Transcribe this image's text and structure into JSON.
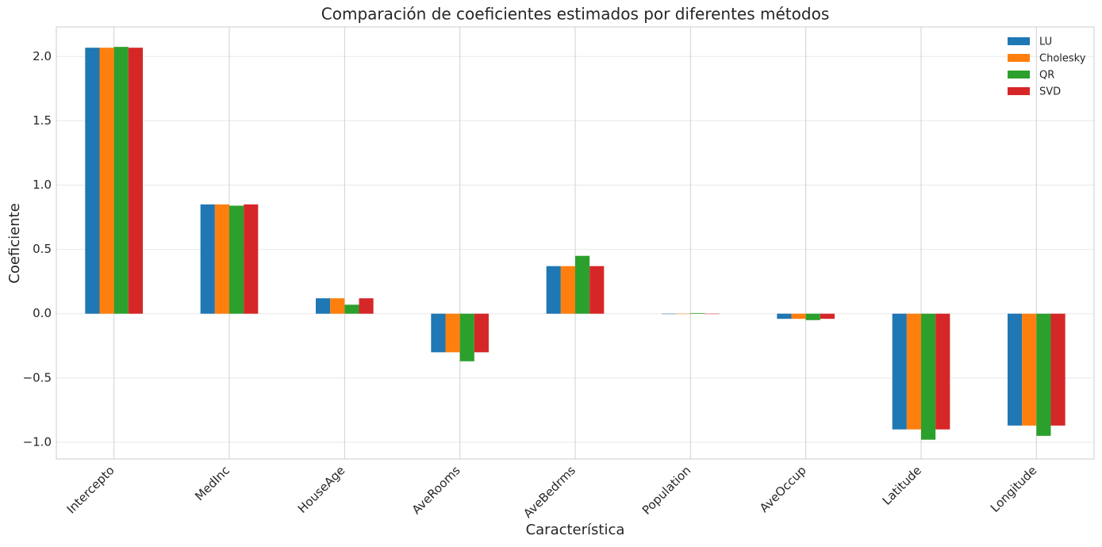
{
  "chart_data": {
    "type": "bar",
    "title": "Comparación de coeficientes estimados por diferentes métodos",
    "x_label": "Característica",
    "y_label": "Coeficiente",
    "categories": [
      "Intercepto",
      "MedInc",
      "HouseAge",
      "AveRooms",
      "AveBedrms",
      "Population",
      "AveOccup",
      "Latitude",
      "Longitude"
    ],
    "series": [
      {
        "name": "LU",
        "color": "#1f77b4",
        "values": [
          2.0685,
          0.85,
          0.12,
          -0.3,
          0.37,
          -0.002,
          -0.04,
          -0.9,
          -0.87
        ]
      },
      {
        "name": "Cholesky",
        "color": "#ff7f0e",
        "values": [
          2.0685,
          0.85,
          0.12,
          -0.3,
          0.37,
          -0.002,
          -0.04,
          -0.9,
          -0.87
        ]
      },
      {
        "name": "QR",
        "color": "#2ca02c",
        "values": [
          2.075,
          0.84,
          0.07,
          -0.37,
          0.45,
          0.005,
          -0.05,
          -0.98,
          -0.95
        ]
      },
      {
        "name": "SVD",
        "color": "#d62728",
        "values": [
          2.0685,
          0.85,
          0.12,
          -0.3,
          0.37,
          -0.002,
          -0.04,
          -0.9,
          -0.87
        ]
      }
    ],
    "ylim": [
      -1.13,
      2.23
    ],
    "yticks": [
      {
        "value": -1,
        "label": "−1.0"
      },
      {
        "value": -0.5,
        "label": "−0.5"
      },
      {
        "value": 0,
        "label": "0.0"
      },
      0.5,
      {
        "value": 1,
        "label": "1.0"
      },
      1.5,
      {
        "value": 2,
        "label": "2.0"
      }
    ],
    "grid": true,
    "legend": "upper right"
  }
}
